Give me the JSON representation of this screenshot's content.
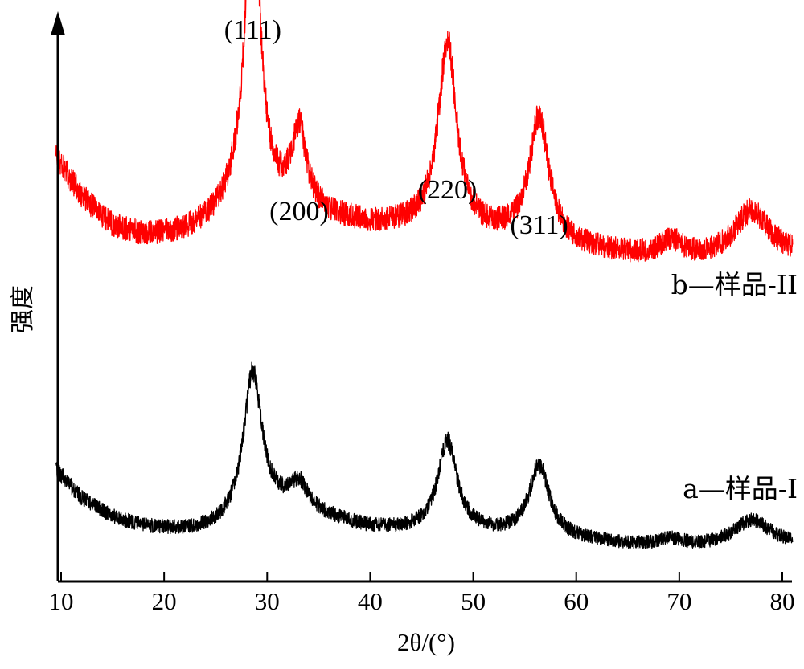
{
  "chart_data": {
    "type": "line",
    "title": "",
    "xlabel": "2θ/(°)",
    "ylabel": "强度",
    "xlim": [
      9.5,
      81
    ],
    "x_ticks": [
      10,
      20,
      30,
      40,
      50,
      60,
      70,
      80
    ],
    "x_tick_labels": [
      "10",
      "20",
      "30",
      "40",
      "50",
      "60",
      "70",
      "80"
    ],
    "y_ticks_shown": false,
    "grid": false,
    "legend": "inline-right",
    "peak_annotations": [
      {
        "label": "(111)",
        "x": 28.6
      },
      {
        "label": "(200)",
        "x": 33.1
      },
      {
        "label": "(220)",
        "x": 47.5
      },
      {
        "label": "(311)",
        "x": 56.4
      }
    ],
    "series": [
      {
        "name": "b—样品-II",
        "color": "#ff0000",
        "profile": {
          "baseline": [
            [
              9.5,
              0.66
            ],
            [
              12,
              0.54
            ],
            [
              15,
              0.45
            ],
            [
              18,
              0.42
            ],
            [
              22,
              0.43
            ],
            [
              25,
              0.47
            ],
            [
              27,
              0.52
            ],
            [
              31,
              0.5
            ],
            [
              36,
              0.47
            ],
            [
              40,
              0.45
            ],
            [
              44,
              0.44
            ],
            [
              50,
              0.42
            ],
            [
              54,
              0.41
            ],
            [
              60,
              0.38
            ],
            [
              65,
              0.36
            ],
            [
              70,
              0.35
            ],
            [
              73,
              0.35
            ],
            [
              81,
              0.36
            ]
          ],
          "peaks": [
            {
              "center": 28.6,
              "height": 1.0,
              "fwhm": 1.7
            },
            {
              "center": 33.1,
              "height": 0.24,
              "fwhm": 1.8
            },
            {
              "center": 47.5,
              "height": 0.58,
              "fwhm": 2.2
            },
            {
              "center": 56.4,
              "height": 0.38,
              "fwhm": 2.3
            },
            {
              "center": 69.2,
              "height": 0.05,
              "fwhm": 2.5
            },
            {
              "center": 77.0,
              "height": 0.14,
              "fwhm": 4.0
            }
          ],
          "noise": 0.045
        }
      },
      {
        "name": "a—样品-I",
        "color": "#000000",
        "profile": {
          "baseline": [
            [
              9.5,
              0.39
            ],
            [
              12,
              0.27
            ],
            [
              15,
              0.19
            ],
            [
              18,
              0.15
            ],
            [
              22,
              0.13
            ],
            [
              25,
              0.14
            ],
            [
              27,
              0.16
            ],
            [
              31,
              0.21
            ],
            [
              36,
              0.18
            ],
            [
              40,
              0.14
            ],
            [
              44,
              0.13
            ],
            [
              50,
              0.12
            ],
            [
              54,
              0.11
            ],
            [
              60,
              0.09
            ],
            [
              65,
              0.07
            ],
            [
              70,
              0.06
            ],
            [
              73,
              0.06
            ],
            [
              81,
              0.07
            ]
          ],
          "peaks": [
            {
              "center": 28.6,
              "height": 0.62,
              "fwhm": 2.2
            },
            {
              "center": 33.1,
              "height": 0.12,
              "fwhm": 2.2
            },
            {
              "center": 47.5,
              "height": 0.38,
              "fwhm": 2.3
            },
            {
              "center": 56.4,
              "height": 0.3,
              "fwhm": 2.4
            },
            {
              "center": 69.2,
              "height": 0.03,
              "fwhm": 3.0
            },
            {
              "center": 77.0,
              "height": 0.11,
              "fwhm": 4.5
            }
          ],
          "noise": 0.045
        }
      }
    ]
  }
}
